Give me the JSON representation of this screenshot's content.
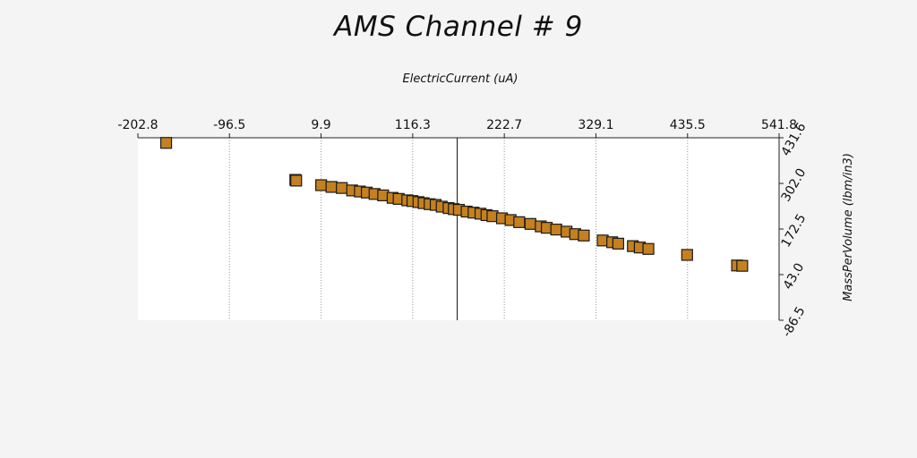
{
  "chart_data": {
    "type": "scatter",
    "title": "AMS Channel # 9",
    "xlabel": "ElectricCurrent (uA)",
    "ylabel": "MassPerVolume (lbm/in3)",
    "xlim": [
      -202.8,
      541.8
    ],
    "ylim": [
      -86.5,
      431.6
    ],
    "x_ticks": [
      "-202.8",
      "-96.5",
      "9.9",
      "116.3",
      "222.7",
      "329.1",
      "435.5",
      "541.8"
    ],
    "y_ticks": [
      "-86.5",
      "43.0",
      "172.5",
      "302.0",
      "431.6"
    ],
    "x_axis_position": "top",
    "y_axis_position": "right",
    "grid": true,
    "reference_line_x": 168.0,
    "marker_color": "#c5801f",
    "points": [
      [
        -170,
        417
      ],
      [
        -20,
        312
      ],
      [
        -19,
        310
      ],
      [
        10,
        297
      ],
      [
        22,
        292
      ],
      [
        34,
        289
      ],
      [
        46,
        282
      ],
      [
        55,
        279
      ],
      [
        63,
        276
      ],
      [
        72,
        272
      ],
      [
        82,
        268
      ],
      [
        93,
        261
      ],
      [
        100,
        258
      ],
      [
        110,
        254
      ],
      [
        116,
        252
      ],
      [
        123,
        249
      ],
      [
        129,
        246
      ],
      [
        136,
        243
      ],
      [
        143,
        241
      ],
      [
        150,
        236
      ],
      [
        158,
        232
      ],
      [
        164,
        229
      ],
      [
        170,
        227
      ],
      [
        179,
        222
      ],
      [
        187,
        219
      ],
      [
        195,
        216
      ],
      [
        202,
        212
      ],
      [
        209,
        209
      ],
      [
        220,
        203
      ],
      [
        230,
        198
      ],
      [
        240,
        192
      ],
      [
        253,
        187
      ],
      [
        265,
        180
      ],
      [
        272,
        176
      ],
      [
        283,
        171
      ],
      [
        295,
        165
      ],
      [
        305,
        158
      ],
      [
        315,
        154
      ],
      [
        337,
        140
      ],
      [
        348,
        135
      ],
      [
        355,
        131
      ],
      [
        372,
        124
      ],
      [
        380,
        120
      ],
      [
        390,
        116
      ],
      [
        435,
        99
      ],
      [
        493,
        69
      ],
      [
        499,
        68
      ]
    ]
  }
}
